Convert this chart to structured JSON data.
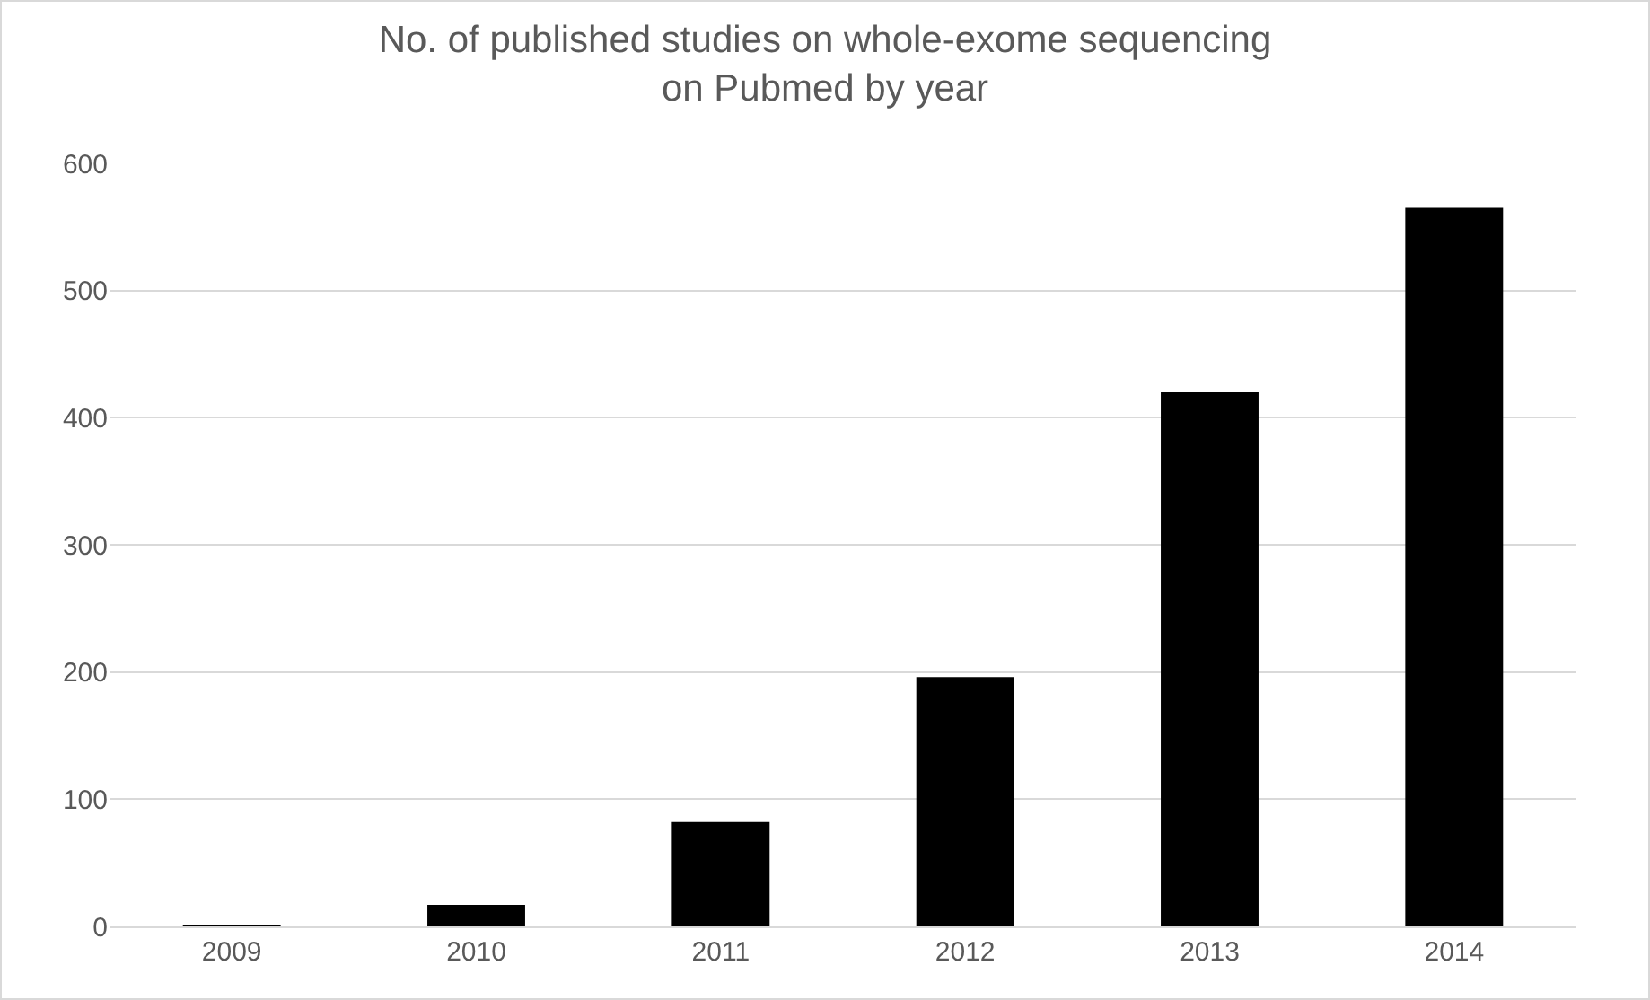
{
  "chart_data": {
    "type": "bar",
    "title": "No. of published studies on whole-exome sequencing\non Pubmed by year",
    "categories": [
      "2009",
      "2010",
      "2011",
      "2012",
      "2013",
      "2014"
    ],
    "values": [
      1,
      17,
      82,
      196,
      420,
      565
    ],
    "color": "#000000",
    "ylim": [
      0,
      600
    ],
    "yticks": [
      0,
      100,
      200,
      300,
      400,
      500,
      600
    ],
    "grid": "y"
  }
}
